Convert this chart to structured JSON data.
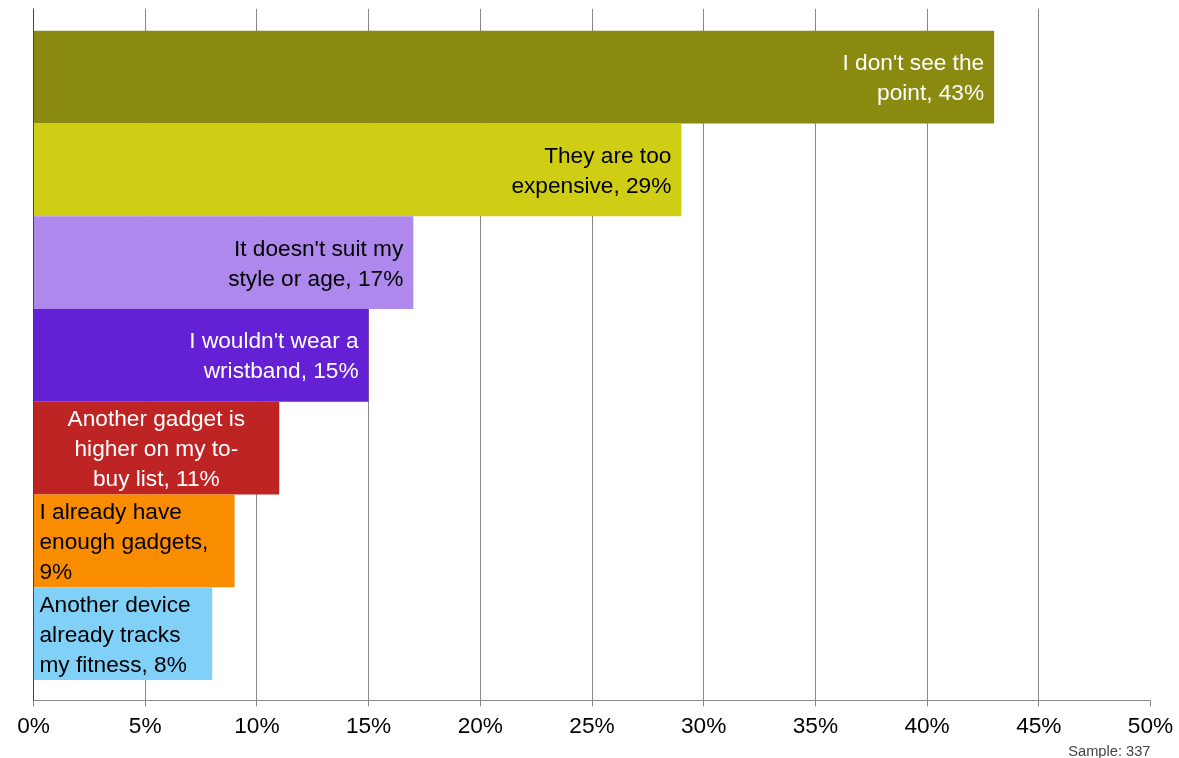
{
  "chart_data": {
    "type": "bar",
    "orientation": "horizontal",
    "categories": [
      null,
      null,
      null,
      null,
      null,
      null,
      null
    ],
    "values": [
      43,
      29,
      17,
      15,
      11,
      9,
      8
    ],
    "colors": [
      "#8a8a10",
      "#cfcd14",
      "#ae88ec",
      "#6420d4",
      "#be2424",
      "#fa8c00",
      "#80d0f8"
    ],
    "value_labels": [
      "I don't see the point, 43%",
      "They are too expensive, 29%",
      "It doesn't suit my style or age, 17%",
      "I wouldn't wear a wristband, 15%",
      "Another gadget is higher on my to-buy list, 11%",
      "I already have enough gadgets, 9%",
      "Another device already tracks my fitness, 8%"
    ],
    "xlim": [
      0,
      50
    ],
    "xticks": [
      {
        "value": 0,
        "label": "0%"
      },
      {
        "value": 5,
        "label": "5%"
      },
      {
        "value": 10,
        "label": "10%"
      },
      {
        "value": 15,
        "label": "15%"
      },
      {
        "value": 20,
        "label": "20%"
      },
      {
        "value": 25,
        "label": "25%"
      },
      {
        "value": 30,
        "label": "30%"
      },
      {
        "value": 35,
        "label": "35%"
      },
      {
        "value": 40,
        "label": "40%"
      },
      {
        "value": 45,
        "label": "45%"
      },
      {
        "value": 50,
        "label": "50%"
      }
    ],
    "grid": "x",
    "tick_labels": "x",
    "annotations": [
      "Sample: 337"
    ]
  }
}
